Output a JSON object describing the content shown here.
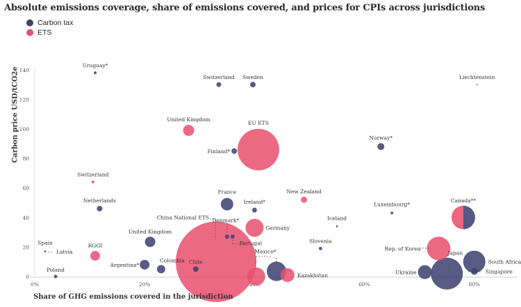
{
  "chart_data": {
    "type": "scatter",
    "title": "Absolute emissions coverage, share of emissions covered, and prices for CPIs across jurisdictions",
    "xlabel": "Share of GHG emissions covered in the jurisdiction",
    "ylabel": "Carbon price USD/tCO2e",
    "xlim": [
      0,
      85
    ],
    "ylim": [
      0,
      140
    ],
    "xticks": [
      "0%",
      "20%",
      "40%",
      "60%",
      "80%"
    ],
    "xtick_values": [
      0,
      20,
      40,
      60,
      80
    ],
    "yticks": [
      "0",
      "20",
      "40",
      "60",
      "80",
      "100",
      "120",
      "140"
    ],
    "ytick_values": [
      0,
      20,
      40,
      60,
      80,
      100,
      120,
      140
    ],
    "grid": false,
    "legend_position": "top-left",
    "legend": [
      {
        "key": "tax",
        "name": "Carbon tax",
        "color": "#3d4170"
      },
      {
        "key": "ets",
        "name": "ETS",
        "color": "#e9506f"
      }
    ],
    "points": [
      {
        "label": "Uruguay*",
        "type": "tax",
        "x": 11,
        "y": 138,
        "size": 4
      },
      {
        "label": "Switzerland",
        "type": "tax",
        "x": 33.5,
        "y": 130,
        "size": 12
      },
      {
        "label": "Sweden",
        "type": "tax",
        "x": 39.7,
        "y": 130,
        "size": 16
      },
      {
        "label": "Liechtenstein",
        "type": "tax",
        "x": 80.5,
        "y": 130,
        "size": 1
      },
      {
        "label": "United Kingdom",
        "type": "ets",
        "x": 28,
        "y": 99,
        "size": 64
      },
      {
        "label": "EU ETS",
        "type": "ets",
        "x": 40.7,
        "y": 86,
        "size": 900
      },
      {
        "label": "Finland*",
        "type": "tax",
        "x": 36.3,
        "y": 85,
        "size": 16
      },
      {
        "label": "Norway*",
        "type": "tax",
        "x": 63,
        "y": 88,
        "size": 25
      },
      {
        "label": "Switzerland",
        "type": "ets",
        "x": 10.6,
        "y": 64,
        "size": 4
      },
      {
        "label": "France",
        "type": "tax",
        "x": 35,
        "y": 49,
        "size": 81
      },
      {
        "label": "Ireland*",
        "type": "tax",
        "x": 40,
        "y": 45,
        "size": 12
      },
      {
        "label": "New Zealand",
        "type": "ets",
        "x": 49,
        "y": 52,
        "size": 20
      },
      {
        "label": "Netherlands",
        "type": "tax",
        "x": 11.8,
        "y": 46,
        "size": 16
      },
      {
        "label": "Luxembourg*",
        "type": "tax",
        "x": 65,
        "y": 43,
        "size": 4
      },
      {
        "label": "Iceland",
        "type": "tax",
        "x": 55,
        "y": 34,
        "size": 2
      },
      {
        "label": "Canada**",
        "type": "both",
        "x": 78,
        "y": 40,
        "size": 289
      },
      {
        "label": "Germany",
        "type": "ets",
        "x": 40,
        "y": 33,
        "size": 169
      },
      {
        "label": "China National ETS",
        "type": "ets",
        "x": 33,
        "y": 10,
        "size": 3364
      },
      {
        "label": "Denmark*",
        "type": "tax",
        "x": 35,
        "y": 27,
        "size": 9
      },
      {
        "label": "Portugal",
        "type": "tax",
        "x": 36,
        "y": 27,
        "size": 9
      },
      {
        "label": "United Kingdom",
        "type": "tax",
        "x": 21,
        "y": 23.5,
        "size": 56
      },
      {
        "label": "Slovenia",
        "type": "tax",
        "x": 52,
        "y": 19,
        "size": 6
      },
      {
        "label": "Rep. of Korea",
        "type": "ets",
        "x": 73.5,
        "y": 19,
        "size": 289
      },
      {
        "label": "Spain",
        "type": "tax",
        "x": 1.9,
        "y": 17,
        "size": 2
      },
      {
        "label": "Latvia",
        "type": "tax",
        "x": 1.9,
        "y": 17,
        "size": 1
      },
      {
        "label": "RGGI",
        "type": "ets",
        "x": 11,
        "y": 14,
        "size": 49
      },
      {
        "label": "Argentina*",
        "type": "tax",
        "x": 20,
        "y": 8,
        "size": 49
      },
      {
        "label": "Colombia",
        "type": "tax",
        "x": 23,
        "y": 5,
        "size": 36
      },
      {
        "label": "Chile",
        "type": "tax",
        "x": 29.3,
        "y": 5,
        "size": 16
      },
      {
        "label": "Poland",
        "type": "tax",
        "x": 3.8,
        "y": 0,
        "size": 6
      },
      {
        "label": "",
        "type": "ets",
        "x": 40.3,
        "y": 0,
        "size": 169
      },
      {
        "label": "Mexico*",
        "type": "tax",
        "x": 44,
        "y": 3.5,
        "size": 196
      },
      {
        "label": "Kazakhstan",
        "type": "ets",
        "x": 46,
        "y": 1,
        "size": 100
      },
      {
        "label": "Ukraine",
        "type": "tax",
        "x": 71,
        "y": 3,
        "size": 100
      },
      {
        "label": "Japan",
        "type": "tax",
        "x": 75,
        "y": 2,
        "size": 529
      },
      {
        "label": "South Africa",
        "type": "tax",
        "x": 80,
        "y": 10,
        "size": 256
      },
      {
        "label": "Singapore",
        "type": "tax",
        "x": 80,
        "y": 3.5,
        "size": 25
      }
    ]
  }
}
